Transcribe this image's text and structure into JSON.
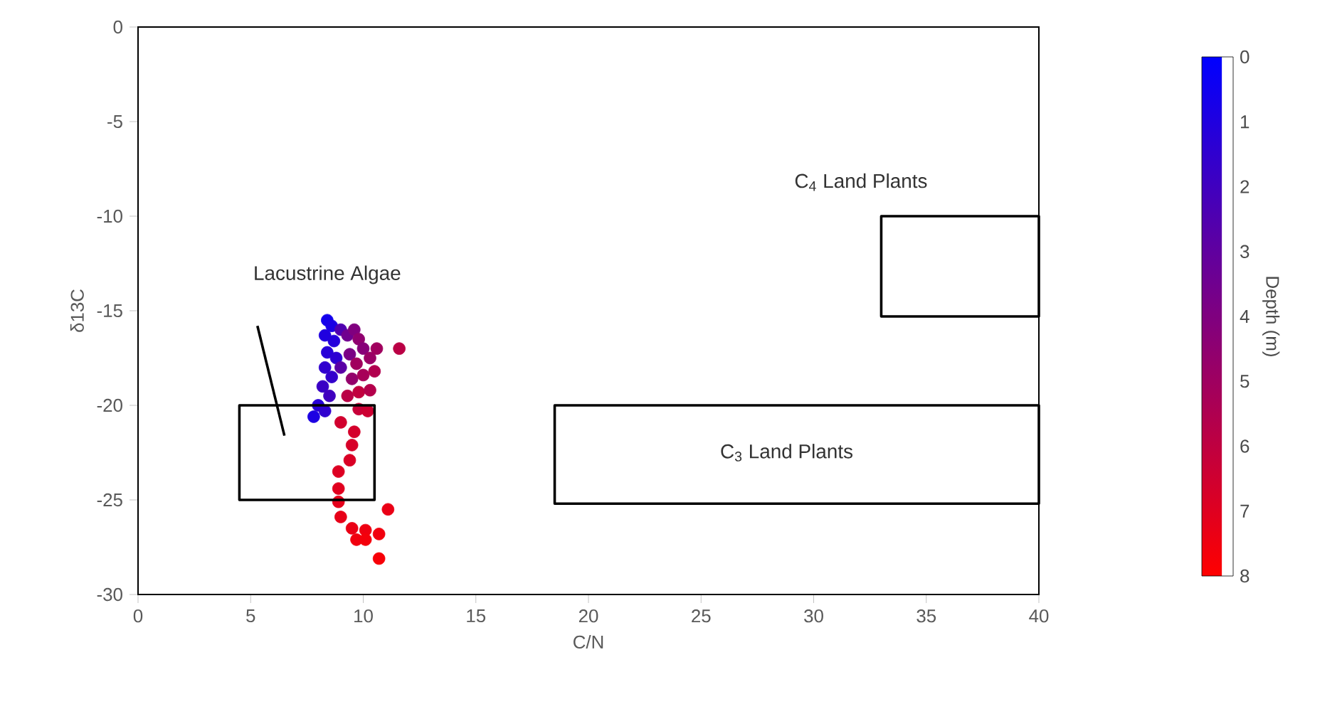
{
  "chart_data": {
    "type": "scatter",
    "xlabel": "C/N",
    "ylabel": "δ13C",
    "clabel": "Depth (m)",
    "xlim": [
      0,
      40
    ],
    "ylim": [
      -30,
      0
    ],
    "xticks": [
      0,
      5,
      10,
      15,
      20,
      25,
      30,
      35,
      40
    ],
    "yticks": [
      -30,
      -25,
      -20,
      -15,
      -10,
      -5,
      0
    ],
    "clim": [
      0,
      8
    ],
    "cticks": [
      0,
      1,
      2,
      3,
      4,
      5,
      6,
      7,
      8
    ],
    "series": [
      {
        "marker": "circle",
        "x": [
          8.4,
          8.6,
          8.3,
          8.7,
          8.4,
          8.8,
          8.3,
          8.6,
          8.2,
          8.5,
          8.0,
          7.8,
          8.3,
          9.0,
          9.0,
          9.3,
          9.6,
          9.8,
          10.0,
          9.4,
          9.7,
          10.3,
          9.5,
          10.0,
          10.5,
          9.3,
          9.8,
          10.3,
          10.6,
          11.6,
          9.8,
          10.2,
          9.0,
          9.6,
          9.5,
          9.4,
          8.9,
          8.9,
          8.9,
          9.0,
          11.1,
          9.5,
          10.1,
          10.7,
          9.7,
          10.1,
          10.7
        ],
        "values": [
          -15.5,
          -15.8,
          -16.3,
          -16.6,
          -17.2,
          -17.5,
          -18.0,
          -18.5,
          -19.0,
          -19.5,
          -20.0,
          -20.6,
          -20.3,
          -16.0,
          -18.0,
          -16.3,
          -16.0,
          -16.5,
          -17.0,
          -17.3,
          -17.8,
          -17.5,
          -18.6,
          -18.4,
          -18.2,
          -19.5,
          -19.3,
          -19.2,
          -17.0,
          -17.0,
          -20.2,
          -20.3,
          -20.9,
          -21.4,
          -22.1,
          -22.9,
          -23.5,
          -24.4,
          -25.1,
          -25.9,
          -25.5,
          -26.5,
          -26.6,
          -26.8,
          -27.1,
          -27.1,
          -28.1
        ],
        "cvalues": [
          0.6,
          0.8,
          1.0,
          1.1,
          1.2,
          1.4,
          1.5,
          1.6,
          1.8,
          2.0,
          1.2,
          0.9,
          1.5,
          2.5,
          2.8,
          3.5,
          4.0,
          4.5,
          4.2,
          3.8,
          5.0,
          4.8,
          4.6,
          5.2,
          5.5,
          5.8,
          6.0,
          5.6,
          5.0,
          5.8,
          6.2,
          6.4,
          6.5,
          6.6,
          6.7,
          6.8,
          6.9,
          7.0,
          7.1,
          7.2,
          7.3,
          7.3,
          7.4,
          7.5,
          7.5,
          7.6,
          7.7
        ]
      }
    ],
    "annotations": [
      "Lacustrine Algae",
      "C$_{4}$ Land Plants",
      "C$_{3}$ Land Plants"
    ]
  }
}
